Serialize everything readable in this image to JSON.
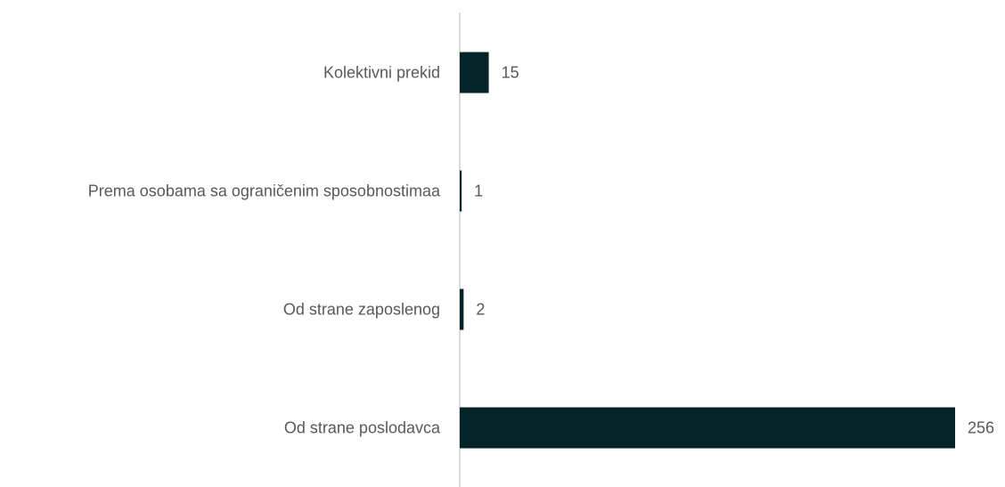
{
  "chart_data": {
    "type": "bar",
    "orientation": "horizontal",
    "categories": [
      "Kolektivni prekid",
      "Prema osobama sa ograničenim sposobnostimaa",
      "Od strane zaposlenog",
      "Od strane poslodavca"
    ],
    "values": [
      15,
      1,
      2,
      256
    ],
    "color": "#032326"
  }
}
